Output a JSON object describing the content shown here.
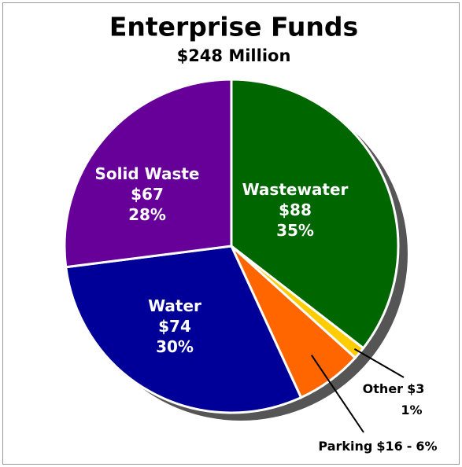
{
  "chart_data": {
    "type": "pie",
    "title": "Enterprise Funds",
    "subtitle": "$248 Million",
    "categories": [
      "Wastewater",
      "Other",
      "Parking",
      "Water",
      "Solid Waste"
    ],
    "values": [
      88,
      3,
      16,
      74,
      67
    ],
    "value_labels": [
      "$88",
      "$3",
      "$16",
      "$74",
      "$67"
    ],
    "percent_labels": [
      "35%",
      "1%",
      "6%",
      "30%",
      "28%"
    ],
    "separator": "-",
    "colors": [
      "#006600",
      "#ffcc00",
      "#ff6600",
      "#000099",
      "#660099"
    ]
  }
}
